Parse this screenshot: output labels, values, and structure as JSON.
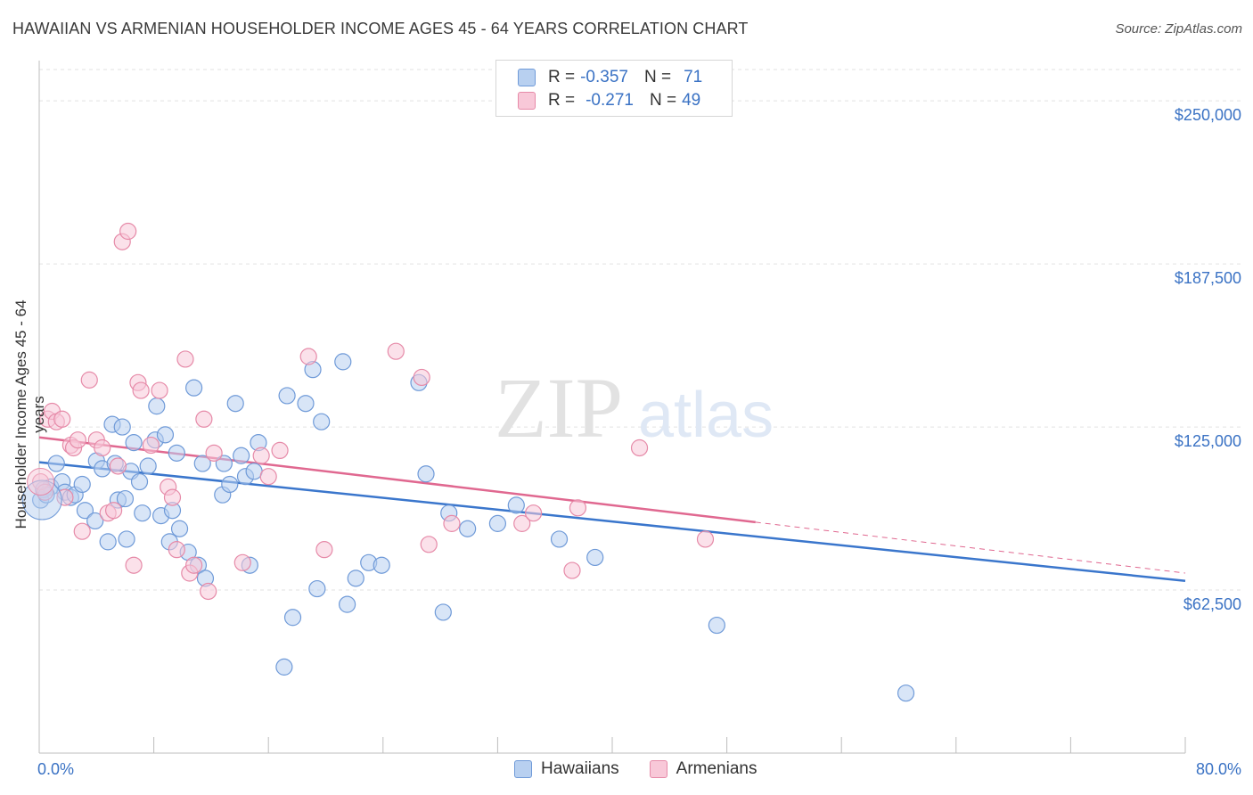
{
  "title": "HAWAIIAN VS ARMENIAN HOUSEHOLDER INCOME AGES 45 - 64 YEARS CORRELATION CHART",
  "source": "Source: ZipAtlas.com",
  "watermark": {
    "zip": "ZIP",
    "atlas": "atlas"
  },
  "legend": {
    "rows": [
      {
        "r_label": "R =",
        "r_value": "-0.357",
        "n_label": "N =",
        "n_value": "71"
      },
      {
        "r_label": "R =",
        "r_value": "-0.271",
        "n_label": "N =",
        "n_value": "49"
      }
    ]
  },
  "colors": {
    "hawaiians_fill": "#b8d0f0",
    "hawaiians_stroke": "#6f9ad8",
    "hawaiians_line": "#3a76cc",
    "armenians_fill": "#f8c8d8",
    "armenians_stroke": "#e68aa8",
    "armenians_line": "#e06890",
    "axis_label": "#3a72c4",
    "grid": "#e2e2e2"
  },
  "chart_data": {
    "type": "scatter",
    "title": "HAWAIIAN VS ARMENIAN HOUSEHOLDER INCOME AGES 45 - 64 YEARS CORRELATION CHART",
    "xlabel": "",
    "ylabel": "Householder Income Ages 45 - 64 years",
    "xlim": [
      0,
      80
    ],
    "ylim": [
      0,
      262000
    ],
    "x_tick_labels": [
      "0.0%",
      "80.0%"
    ],
    "y_ticks": [
      62500,
      125000,
      187500,
      250000
    ],
    "y_tick_labels": [
      "$62,500",
      "$125,000",
      "$187,500",
      "$250,000"
    ],
    "grid": true,
    "legend_position": "top-center",
    "series": [
      {
        "name": "Hawaiians",
        "r": -0.357,
        "n": 71,
        "trend": {
          "x": [
            0,
            80
          ],
          "y": [
            111500,
            66000
          ]
        },
        "points": [
          [
            0.1,
            97000
          ],
          [
            0.8,
            102000
          ],
          [
            1.2,
            111000
          ],
          [
            1.6,
            104000
          ],
          [
            1.8,
            100000
          ],
          [
            2.2,
            98000
          ],
          [
            2.5,
            99000
          ],
          [
            3.0,
            103000
          ],
          [
            3.2,
            93000
          ],
          [
            3.9,
            89000
          ],
          [
            4.0,
            112000
          ],
          [
            4.4,
            109000
          ],
          [
            4.8,
            81000
          ],
          [
            5.1,
            126000
          ],
          [
            5.3,
            111000
          ],
          [
            5.5,
            97000
          ],
          [
            5.8,
            125000
          ],
          [
            6.0,
            97500
          ],
          [
            6.1,
            82000
          ],
          [
            6.4,
            108000
          ],
          [
            6.6,
            119000
          ],
          [
            7.0,
            104000
          ],
          [
            7.2,
            92000
          ],
          [
            7.6,
            110000
          ],
          [
            8.1,
            120000
          ],
          [
            8.2,
            133000
          ],
          [
            8.5,
            91000
          ],
          [
            8.8,
            122000
          ],
          [
            9.1,
            81000
          ],
          [
            9.3,
            93000
          ],
          [
            9.6,
            115000
          ],
          [
            9.8,
            86000
          ],
          [
            10.4,
            77000
          ],
          [
            10.8,
            140000
          ],
          [
            11.1,
            72000
          ],
          [
            11.4,
            111000
          ],
          [
            11.6,
            67000
          ],
          [
            12.8,
            99000
          ],
          [
            12.9,
            111000
          ],
          [
            13.3,
            103000
          ],
          [
            13.7,
            134000
          ],
          [
            14.1,
            114000
          ],
          [
            14.4,
            106000
          ],
          [
            14.7,
            72000
          ],
          [
            15.0,
            108000
          ],
          [
            15.3,
            119000
          ],
          [
            17.1,
            33000
          ],
          [
            17.3,
            137000
          ],
          [
            17.7,
            52000
          ],
          [
            18.6,
            134000
          ],
          [
            19.1,
            147000
          ],
          [
            19.4,
            63000
          ],
          [
            19.7,
            127000
          ],
          [
            21.2,
            150000
          ],
          [
            21.5,
            57000
          ],
          [
            22.1,
            67000
          ],
          [
            23.0,
            73000
          ],
          [
            23.9,
            72000
          ],
          [
            26.5,
            142000
          ],
          [
            27.0,
            107000
          ],
          [
            28.2,
            54000
          ],
          [
            28.6,
            92000
          ],
          [
            29.9,
            86000
          ],
          [
            32.0,
            88000
          ],
          [
            33.3,
            95000
          ],
          [
            36.3,
            82000
          ],
          [
            38.8,
            75000
          ],
          [
            47.3,
            49000
          ],
          [
            60.5,
            23000
          ],
          [
            0.3,
            101000
          ],
          [
            0.5,
            99000
          ]
        ]
      },
      {
        "name": "Armenians",
        "r": -0.271,
        "n": 49,
        "trend": {
          "x": [
            0,
            50
          ],
          "y": [
            121000,
            88500
          ]
        },
        "trend_dashed": {
          "x": [
            50,
            80
          ],
          "y": [
            88500,
            69000
          ]
        },
        "points": [
          [
            0.1,
            104000
          ],
          [
            0.4,
            100000
          ],
          [
            0.6,
            128000
          ],
          [
            0.9,
            131000
          ],
          [
            1.2,
            127000
          ],
          [
            1.6,
            128000
          ],
          [
            1.8,
            98000
          ],
          [
            2.2,
            118000
          ],
          [
            2.4,
            117000
          ],
          [
            2.7,
            120000
          ],
          [
            3.0,
            85000
          ],
          [
            3.5,
            143000
          ],
          [
            4.0,
            120000
          ],
          [
            4.4,
            117000
          ],
          [
            4.8,
            92000
          ],
          [
            5.2,
            93000
          ],
          [
            5.5,
            110000
          ],
          [
            5.8,
            196000
          ],
          [
            6.2,
            200000
          ],
          [
            6.6,
            72000
          ],
          [
            6.9,
            142000
          ],
          [
            7.1,
            139000
          ],
          [
            7.8,
            118000
          ],
          [
            8.4,
            139000
          ],
          [
            9.0,
            102000
          ],
          [
            9.3,
            98000
          ],
          [
            9.6,
            78000
          ],
          [
            10.2,
            151000
          ],
          [
            10.5,
            69000
          ],
          [
            10.8,
            72000
          ],
          [
            11.5,
            128000
          ],
          [
            11.8,
            62000
          ],
          [
            12.2,
            115000
          ],
          [
            14.2,
            73000
          ],
          [
            15.5,
            114000
          ],
          [
            16.0,
            106000
          ],
          [
            16.8,
            116000
          ],
          [
            18.8,
            152000
          ],
          [
            19.9,
            78000
          ],
          [
            24.9,
            154000
          ],
          [
            26.7,
            144000
          ],
          [
            27.2,
            80000
          ],
          [
            28.8,
            88000
          ],
          [
            33.7,
            88000
          ],
          [
            34.5,
            92000
          ],
          [
            37.2,
            70000
          ],
          [
            37.6,
            94000
          ],
          [
            41.9,
            117000
          ],
          [
            46.5,
            82000
          ]
        ]
      }
    ]
  }
}
